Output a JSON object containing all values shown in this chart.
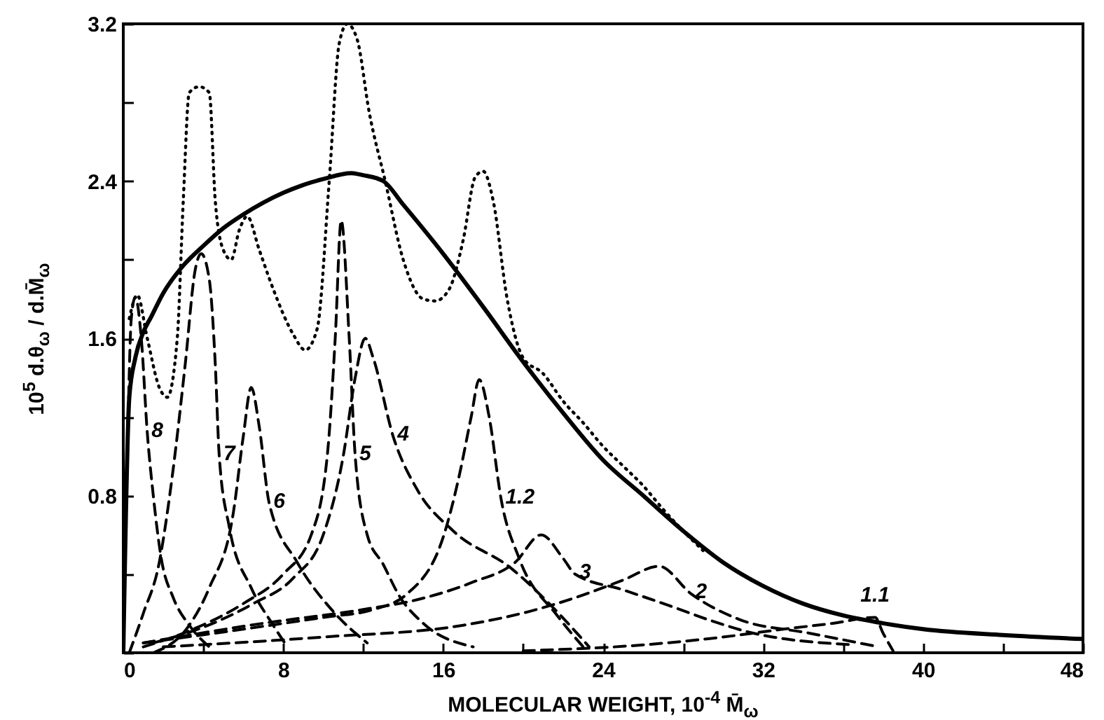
{
  "chart_data": {
    "type": "line",
    "xlabel": "MOLECULAR WEIGHT, 10$^{-4}$ M̄$_{ω}$",
    "ylabel": "10$^{5}$ d.θ$_{ω}$ / d.M̄$_{ω}$",
    "xlim": [
      0,
      48
    ],
    "ylim": [
      0,
      3.2
    ],
    "xticks": [
      0,
      {
        "value": 4,
        "label": null
      },
      8,
      {
        "value": 12,
        "label": null
      },
      16,
      {
        "value": 20,
        "label": null
      },
      24,
      {
        "value": 28,
        "label": null
      },
      32,
      {
        "value": 36,
        "label": null
      },
      40,
      {
        "value": 44,
        "label": null
      },
      48
    ],
    "yticks": [
      {
        "value": 0,
        "label": null
      },
      {
        "value": 0.4,
        "label": null
      },
      0.8,
      {
        "value": 1.2,
        "label": null
      },
      1.6,
      {
        "value": 2,
        "label": null
      },
      2.4,
      {
        "value": 2.8,
        "label": null
      },
      3.2
    ],
    "grid": false,
    "marker": "none",
    "series": [
      {
        "color": "#000000",
        "line_style": "solid",
        "x": [
          0,
          0.3,
          0.6,
          1,
          1.4,
          2,
          3,
          4,
          5,
          6,
          7,
          8,
          9,
          10,
          11.4,
          12,
          13,
          14,
          16,
          18,
          20,
          22,
          24,
          26,
          28,
          30,
          32,
          34,
          36,
          38,
          40,
          44,
          48
        ],
        "values": [
          0,
          1.3,
          1.5,
          1.63,
          1.71,
          1.83,
          1.97,
          2.07,
          2.16,
          2.23,
          2.29,
          2.34,
          2.38,
          2.41,
          2.44,
          2.43,
          2.4,
          2.28,
          2.03,
          1.76,
          1.48,
          1.22,
          0.98,
          0.8,
          0.62,
          0.46,
          0.34,
          0.25,
          0.19,
          0.15,
          0.12,
          0.09,
          0.07
        ]
      },
      {
        "color": "#000000",
        "line_style": "dotted",
        "x": [
          0.3,
          0.7,
          1.2,
          1.8,
          2.2,
          2.7,
          3,
          3.3,
          3.8,
          4.3,
          4.6,
          5,
          5.4,
          5.8,
          6.2,
          6.8,
          7.5,
          8.5,
          9.1,
          9.7,
          10.3,
          10.8,
          11.2,
          11.7,
          12.3,
          13.1,
          14,
          15,
          15.6,
          16.3,
          17,
          17.6,
          18,
          18.5,
          19.2,
          20,
          21,
          22,
          23,
          24,
          25,
          26,
          27,
          28,
          29
        ],
        "values": [
          1.7,
          1.82,
          1.6,
          1.35,
          1.3,
          1.6,
          2.3,
          2.85,
          2.88,
          2.85,
          2.3,
          2.05,
          2,
          2.15,
          2.22,
          2.05,
          1.85,
          1.62,
          1.54,
          1.65,
          2.4,
          3.1,
          3.2,
          3.12,
          2.75,
          2.4,
          2,
          1.8,
          1.79,
          1.85,
          2.1,
          2.42,
          2.45,
          2.3,
          1.8,
          1.5,
          1.42,
          1.28,
          1.17,
          1.05,
          0.95,
          0.85,
          0.73,
          0.62,
          0.52
        ]
      },
      {
        "name": "8",
        "color": "#000000",
        "line_style": "dashed",
        "x": [
          0,
          0.2,
          0.4,
          0.6,
          0.9,
          1.2,
          1.5,
          1.9,
          2.5,
          3.3,
          4.3
        ],
        "values": [
          0,
          1,
          1.7,
          1.81,
          1.6,
          1.12,
          0.8,
          0.48,
          0.28,
          0.14,
          0.03
        ]
      },
      {
        "name": "7",
        "color": "#000000",
        "line_style": "dashed",
        "x": [
          0.3,
          1,
          1.8,
          2.4,
          3.1,
          3.6,
          3.9,
          4.3,
          4.6,
          4.8,
          5.3,
          6.4,
          7.5,
          8.2
        ],
        "values": [
          0,
          0.2,
          0.46,
          0.86,
          1.47,
          1.95,
          2.03,
          1.9,
          1.47,
          1,
          0.64,
          0.33,
          0.14,
          0.03
        ]
      },
      {
        "name": "6",
        "color": "#000000",
        "line_style": "dashed",
        "x": [
          1.5,
          3.3,
          4.3,
          5.5,
          6,
          6.4,
          6.8,
          7.3,
          8.7,
          10.5,
          12.2
        ],
        "values": [
          0,
          0.14,
          0.33,
          0.71,
          1.1,
          1.35,
          1.15,
          0.76,
          0.46,
          0.21,
          0.05
        ]
      },
      {
        "name": "5",
        "color": "#000000",
        "line_style": "dashed",
        "x": [
          1,
          3.5,
          6,
          8,
          9.4,
          10.2,
          10.6,
          10.9,
          11.3,
          11.6,
          12.2,
          13,
          13.8,
          15,
          17.5
        ],
        "values": [
          0.03,
          0.12,
          0.25,
          0.4,
          0.6,
          1,
          1.6,
          2.2,
          1.6,
          1,
          0.6,
          0.45,
          0.29,
          0.15,
          0.03
        ]
      },
      {
        "name": "4",
        "color": "#000000",
        "line_style": "dashed",
        "x": [
          1.5,
          4,
          6.5,
          8.5,
          10,
          11,
          11.6,
          12.1,
          12.5,
          13.5,
          14.7,
          16.5,
          19.4,
          21.4,
          23.3
        ],
        "values": [
          0.05,
          0.13,
          0.25,
          0.38,
          0.6,
          1,
          1.4,
          1.6,
          1.5,
          1.1,
          0.83,
          0.62,
          0.43,
          0.24,
          0.03
        ]
      },
      {
        "name": "1.2",
        "color": "#000000",
        "line_style": "dashed",
        "x": [
          1,
          6,
          10,
          12.5,
          14.2,
          16.1,
          16.8,
          17.4,
          17.8,
          18.3,
          18.9,
          19.8,
          21.7,
          23
        ],
        "values": [
          0.05,
          0.12,
          0.18,
          0.22,
          0.3,
          0.62,
          0.9,
          1.2,
          1.39,
          1.2,
          0.78,
          0.48,
          0.19,
          0.03
        ]
      },
      {
        "name": "3",
        "color": "#000000",
        "line_style": "dashed",
        "x": [
          1,
          7,
          12,
          14.7,
          17.5,
          19.6,
          20.9,
          22,
          22.6,
          25,
          27.3,
          29.5,
          31.5,
          36.6
        ],
        "values": [
          0.05,
          0.15,
          0.22,
          0.27,
          0.36,
          0.46,
          0.6,
          0.48,
          0.4,
          0.32,
          0.24,
          0.16,
          0.1,
          0.04
        ]
      },
      {
        "name": "2",
        "color": "#000000",
        "line_style": "dashed",
        "x": [
          2,
          10,
          17,
          20.3,
          22.6,
          25,
          26.8,
          28.4,
          30.8,
          34.3,
          37.8
        ],
        "values": [
          0.03,
          0.08,
          0.14,
          0.21,
          0.28,
          0.37,
          0.44,
          0.3,
          0.17,
          0.1,
          0.03
        ]
      },
      {
        "name": "1.1",
        "color": "#000000",
        "line_style": "dashed",
        "x": [
          20,
          26,
          30,
          33,
          35.5,
          37.6,
          38,
          38.5
        ],
        "values": [
          0.01,
          0.04,
          0.08,
          0.12,
          0.15,
          0.18,
          0.1,
          0.01
        ]
      }
    ]
  }
}
